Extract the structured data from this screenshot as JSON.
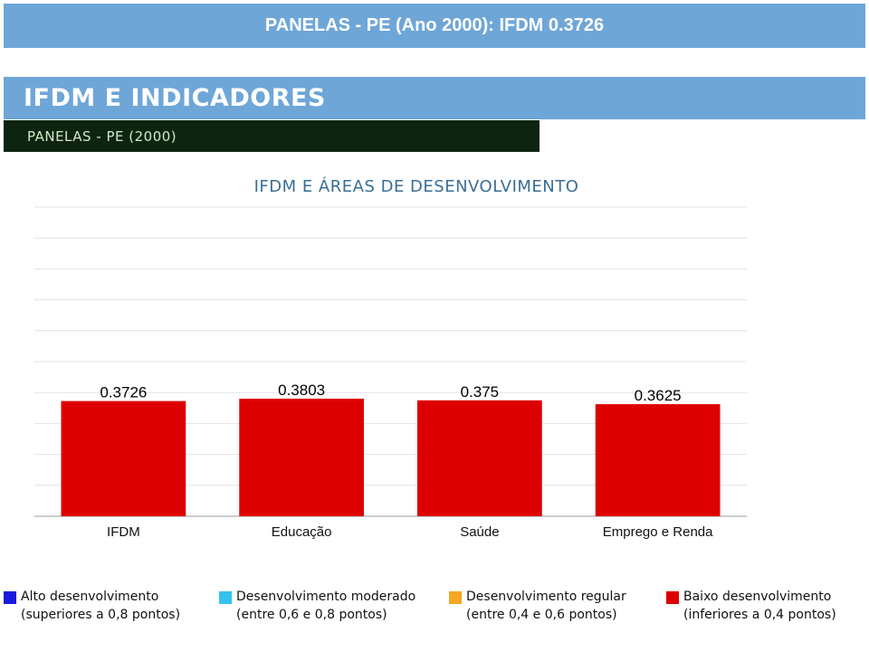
{
  "header": {
    "title": "PANELAS - PE (Ano 2000): IFDM 0.3726"
  },
  "section": {
    "title": "IFDM E INDICADORES",
    "subtitle": "PANELAS - PE (2000)"
  },
  "chart_data": {
    "type": "bar",
    "title": "IFDM E ÁREAS DE DESENVOLVIMENTO",
    "categories": [
      "IFDM",
      "Educação",
      "Saúde",
      "Emprego e Renda"
    ],
    "values": [
      0.3726,
      0.3803,
      0.375,
      0.3625
    ],
    "value_labels": [
      "0.3726",
      "0.3803",
      "0.375",
      "0.3625"
    ],
    "bar_color": "#dd0000",
    "ylim": [
      0,
      1
    ],
    "grid": true,
    "xlabel": "",
    "ylabel": ""
  },
  "legend": {
    "items": [
      {
        "label": "Alto desenvolvimento",
        "sub": "(superiores a 0,8 pontos)",
        "color": "#1a1adc"
      },
      {
        "label": "Desenvolvimento moderado",
        "sub": "(entre 0,6 e 0,8 pontos)",
        "color": "#33c3ee"
      },
      {
        "label": "Desenvolvimento regular",
        "sub": "(entre 0,4 e 0,6 pontos)",
        "color": "#f5a623"
      },
      {
        "label": "Baixo desenvolvimento",
        "sub": "(inferiores a 0,4 pontos)",
        "color": "#dd0000"
      }
    ]
  }
}
